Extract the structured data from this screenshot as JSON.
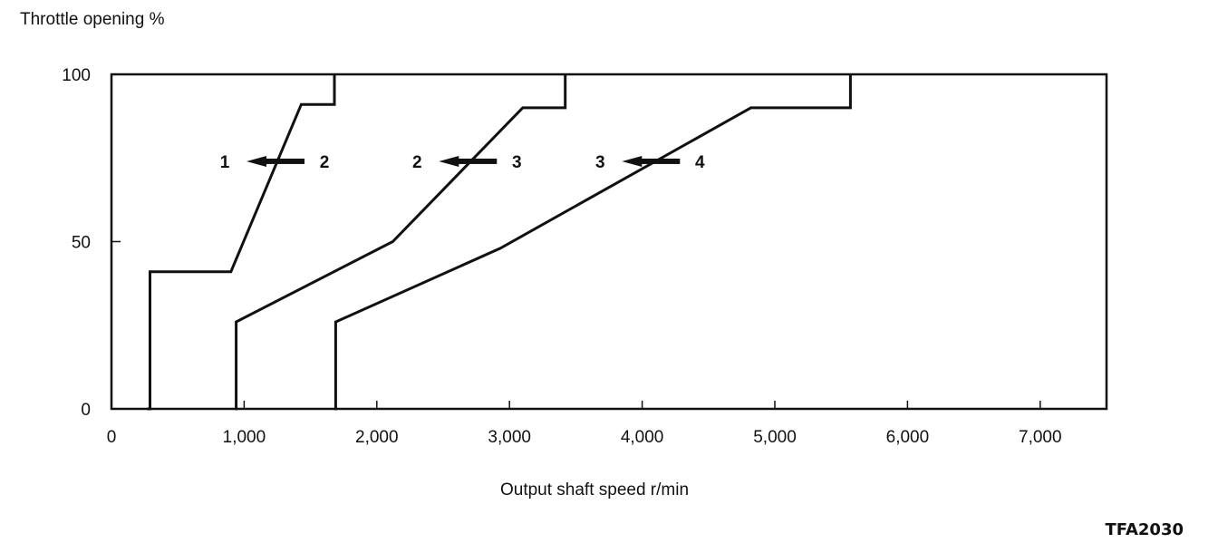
{
  "chart_data": {
    "type": "line",
    "ylabel": "Throttle opening %",
    "xlabel": "Output shaft speed r/min",
    "xlim": [
      0,
      7500
    ],
    "ylim": [
      0,
      100
    ],
    "xticks": [
      0,
      1000,
      2000,
      3000,
      4000,
      5000,
      6000,
      7000
    ],
    "xtick_labels": [
      "0",
      "1,000",
      "2,000",
      "3,000",
      "4,000",
      "5,000",
      "6,000",
      "7,000"
    ],
    "yticks": [
      0,
      50,
      100
    ],
    "ytick_labels": [
      "0",
      "50",
      "100"
    ],
    "grid": false,
    "series": [
      {
        "points": [
          [
            270,
            0
          ],
          [
            290,
            0
          ],
          [
            290,
            41
          ],
          [
            900,
            41
          ],
          [
            1430,
            91
          ],
          [
            1680,
            91
          ],
          [
            1680,
            100
          ]
        ]
      },
      {
        "points": [
          [
            930,
            0
          ],
          [
            940,
            0
          ],
          [
            940,
            26
          ],
          [
            2120,
            50
          ],
          [
            3100,
            90
          ],
          [
            3420,
            90
          ],
          [
            3420,
            100
          ]
        ]
      },
      {
        "points": [
          [
            1680,
            0
          ],
          [
            1690,
            0
          ],
          [
            1690,
            26
          ],
          [
            2930,
            48
          ],
          [
            4820,
            90
          ],
          [
            5570,
            90
          ],
          [
            5570,
            100
          ]
        ]
      }
    ],
    "annotations": [
      {
        "from": "1",
        "to": "2",
        "x": 1250,
        "y": 74
      },
      {
        "from": "2",
        "to": "3",
        "x": 2700,
        "y": 74
      },
      {
        "from": "3",
        "to": "4",
        "x": 4080,
        "y": 74
      }
    ]
  },
  "figure_code": "TFA2030"
}
